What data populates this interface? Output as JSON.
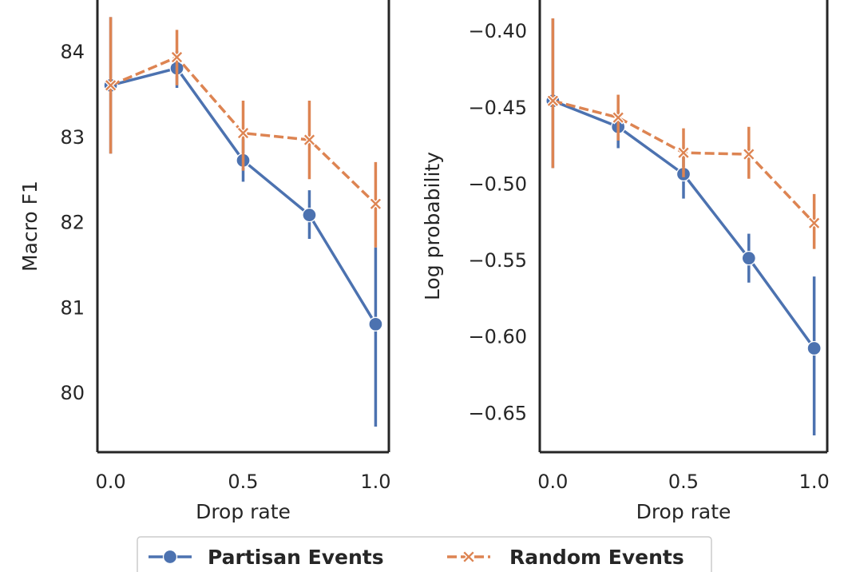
{
  "chart_data": [
    {
      "type": "line",
      "xlabel": "Drop rate",
      "ylabel": "Macro F1",
      "xlim": [
        -0.05,
        1.05
      ],
      "ylim": [
        79.3,
        84.6
      ],
      "xticks": [
        {
          "value": 0.0,
          "label": "0.0"
        },
        {
          "value": 0.5,
          "label": "0.5"
        },
        {
          "value": 1.0,
          "label": "1.0"
        }
      ],
      "yticks": [
        {
          "value": 80,
          "label": "80"
        },
        {
          "value": 81,
          "label": "81"
        },
        {
          "value": 82,
          "label": "82"
        },
        {
          "value": 83,
          "label": "83"
        },
        {
          "value": 84,
          "label": "84"
        }
      ],
      "x": [
        0.0,
        0.25,
        0.5,
        0.75,
        1.0
      ],
      "grid": false,
      "series": [
        {
          "name": "Partisan Events",
          "color": "#4c72b0",
          "marker": "circle",
          "linestyle": "solid",
          "values": [
            83.6,
            83.8,
            82.72,
            82.08,
            80.8
          ],
          "err_low": [
            82.8,
            83.57,
            82.47,
            81.8,
            79.6
          ],
          "err_high": [
            84.4,
            84.0,
            82.97,
            82.37,
            81.7
          ]
        },
        {
          "name": "Random Events",
          "color": "#dd8452",
          "marker": "x",
          "linestyle": "dashed",
          "values": [
            83.6,
            83.93,
            83.04,
            82.96,
            82.21
          ],
          "err_low": [
            82.8,
            83.6,
            82.6,
            82.5,
            81.7
          ],
          "err_high": [
            84.4,
            84.25,
            83.42,
            83.42,
            82.7
          ]
        }
      ]
    },
    {
      "type": "line",
      "xlabel": "Drop rate",
      "ylabel": "Log probability",
      "xlim": [
        -0.05,
        1.05
      ],
      "ylim": [
        -0.676,
        -0.38
      ],
      "xticks": [
        {
          "value": 0.0,
          "label": "0.0"
        },
        {
          "value": 0.5,
          "label": "0.5"
        },
        {
          "value": 1.0,
          "label": "1.0"
        }
      ],
      "yticks": [
        {
          "value": -0.4,
          "label": "−0.40"
        },
        {
          "value": -0.45,
          "label": "−0.45"
        },
        {
          "value": -0.5,
          "label": "−0.50"
        },
        {
          "value": -0.55,
          "label": "−0.55"
        },
        {
          "value": -0.6,
          "label": "−0.60"
        },
        {
          "value": -0.65,
          "label": "−0.65"
        }
      ],
      "x": [
        0.0,
        0.25,
        0.5,
        0.75,
        1.0
      ],
      "grid": false,
      "series": [
        {
          "name": "Partisan Events",
          "color": "#4c72b0",
          "marker": "circle",
          "linestyle": "solid",
          "values": [
            -0.446,
            -0.463,
            -0.494,
            -0.549,
            -0.608
          ],
          "err_low": [
            -0.49,
            -0.477,
            -0.51,
            -0.565,
            -0.665
          ],
          "err_high": [
            -0.392,
            -0.452,
            -0.478,
            -0.533,
            -0.561
          ]
        },
        {
          "name": "Random Events",
          "color": "#dd8452",
          "marker": "x",
          "linestyle": "dashed",
          "values": [
            -0.446,
            -0.457,
            -0.48,
            -0.481,
            -0.526
          ],
          "err_low": [
            -0.49,
            -0.472,
            -0.496,
            -0.497,
            -0.543
          ],
          "err_high": [
            -0.392,
            -0.442,
            -0.464,
            -0.463,
            -0.507
          ]
        }
      ]
    }
  ],
  "legend": {
    "placement": "bottom-center",
    "entries": [
      {
        "label": "Partisan Events",
        "color": "#4c72b0",
        "marker": "circle",
        "linestyle": "solid"
      },
      {
        "label": "Random Events",
        "color": "#dd8452",
        "marker": "x",
        "linestyle": "dashed"
      }
    ]
  }
}
